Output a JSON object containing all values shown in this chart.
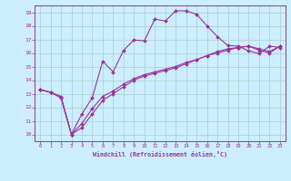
{
  "xlabel": "Windchill (Refroidissement éolien,°C)",
  "bg_color": "#cceeff",
  "grid_color": "#aacccc",
  "line_color": "#993399",
  "xlim": [
    -0.5,
    23.5
  ],
  "ylim": [
    9.5,
    19.5
  ],
  "xticks": [
    0,
    1,
    2,
    3,
    4,
    5,
    6,
    7,
    8,
    9,
    10,
    11,
    12,
    13,
    14,
    15,
    16,
    17,
    18,
    19,
    20,
    21,
    22,
    23
  ],
  "yticks": [
    10,
    11,
    12,
    13,
    14,
    15,
    16,
    17,
    18,
    19
  ],
  "line1_x": [
    0,
    1,
    2,
    3,
    4,
    5,
    6,
    7,
    8,
    9,
    10,
    11,
    12,
    13,
    14,
    15,
    16,
    17,
    18,
    19,
    20,
    21,
    22,
    23
  ],
  "line1_y": [
    13.3,
    13.1,
    12.7,
    10.0,
    11.5,
    12.7,
    15.4,
    14.6,
    16.2,
    16.95,
    16.9,
    18.5,
    18.35,
    19.1,
    19.1,
    18.85,
    18.0,
    17.2,
    16.55,
    16.5,
    16.15,
    15.95,
    16.5,
    16.4
  ],
  "line2_x": [
    0,
    1,
    2,
    3,
    4,
    5,
    6,
    7,
    8,
    9,
    10,
    11,
    12,
    13,
    14,
    15,
    16,
    17,
    18,
    19,
    20,
    21,
    22,
    23
  ],
  "line2_y": [
    13.3,
    13.1,
    12.7,
    10.0,
    10.8,
    11.9,
    12.8,
    13.2,
    13.7,
    14.1,
    14.4,
    14.6,
    14.8,
    15.0,
    15.3,
    15.5,
    15.8,
    16.1,
    16.3,
    16.4,
    16.5,
    16.2,
    16.0,
    16.5
  ],
  "line3_x": [
    0,
    1,
    2,
    3,
    4,
    5,
    6,
    7,
    8,
    9,
    10,
    11,
    12,
    13,
    14,
    15,
    16,
    17,
    18,
    19,
    20,
    21,
    22,
    23
  ],
  "line3_y": [
    13.3,
    13.1,
    12.8,
    10.0,
    10.5,
    11.5,
    12.5,
    13.0,
    13.5,
    14.0,
    14.3,
    14.5,
    14.7,
    14.9,
    15.2,
    15.5,
    15.8,
    16.0,
    16.2,
    16.4,
    16.5,
    16.3,
    16.1,
    16.5
  ]
}
